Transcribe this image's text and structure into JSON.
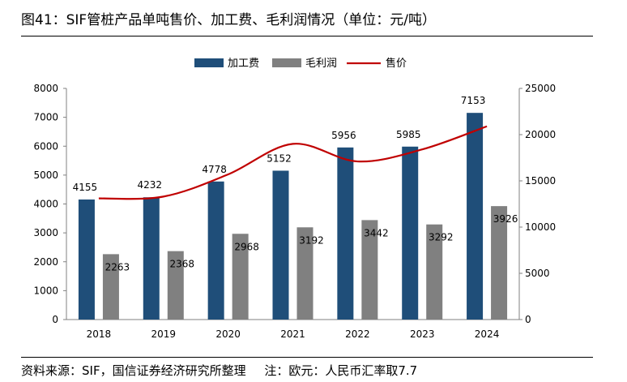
{
  "title": "图41：SIF管桩产品单吨售价、加工费、毛利润情况（单位：元/吨）",
  "source": "资料来源：SIF，国信证券经济研究所整理",
  "note": "注：欧元：人民币汇率取7.7",
  "colors": {
    "bar1": "#1f4e79",
    "bar2": "#808080",
    "line": "#c00000",
    "axis": "#808080"
  },
  "chart_data": {
    "type": "bar",
    "categories": [
      "2018",
      "2019",
      "2020",
      "2021",
      "2022",
      "2023",
      "2024"
    ],
    "series": [
      {
        "name": "加工费",
        "type": "bar",
        "axis": "left",
        "values": [
          4155,
          4232,
          4778,
          5152,
          5956,
          5985,
          7153
        ]
      },
      {
        "name": "毛利润",
        "type": "bar",
        "axis": "left",
        "values": [
          2263,
          2368,
          2968,
          3192,
          3442,
          3292,
          3926
        ]
      },
      {
        "name": "售价",
        "type": "line",
        "axis": "right",
        "values": [
          13100,
          13300,
          15700,
          19000,
          17100,
          18400,
          20900
        ]
      }
    ],
    "left_axis": {
      "min": 0,
      "max": 8000,
      "ticks": [
        0,
        1000,
        2000,
        3000,
        4000,
        5000,
        6000,
        7000,
        8000
      ]
    },
    "right_axis": {
      "min": 0,
      "max": 25000,
      "ticks": [
        0,
        5000,
        10000,
        15000,
        20000,
        25000
      ]
    },
    "legend_position": "top-center"
  }
}
